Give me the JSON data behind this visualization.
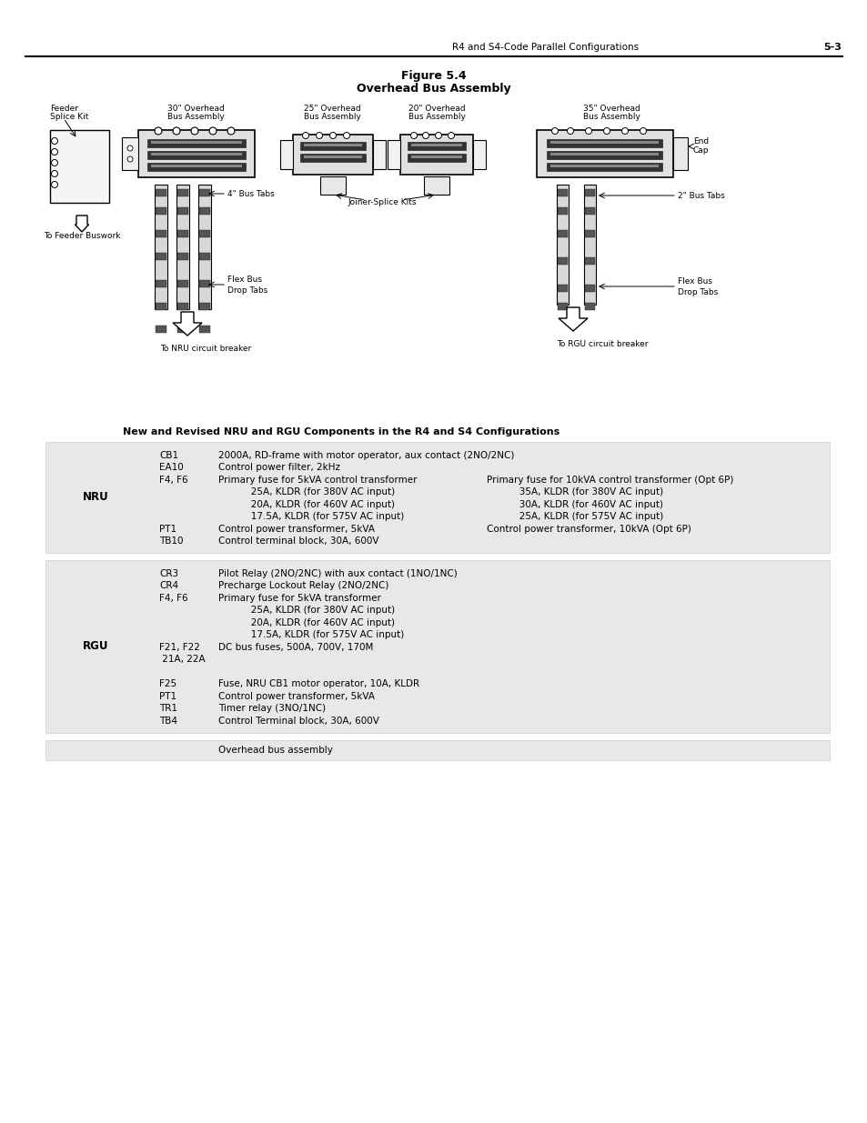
{
  "page_header_text": "R4 and S4-Code Parallel Configurations",
  "page_number": "5-3",
  "figure_title_line1": "Figure 5.4",
  "figure_title_line2": "Overhead Bus Assembly",
  "table_title": "New and Revised NRU and RGU Components in the R4 and S4 Configurations",
  "bg_color": "#ffffff",
  "nru_rows": [
    {
      "label": "CB1",
      "col1": "2000A, RD-frame with motor operator, aux contact (2NO/2NC)",
      "col2": ""
    },
    {
      "label": "EA10",
      "col1": "Control power filter, 2kHz",
      "col2": ""
    },
    {
      "label": "F4, F6",
      "col1": "Primary fuse for 5kVA control transformer",
      "col2": "Primary fuse for 10kVA control transformer (Opt 6P)"
    },
    {
      "label": "",
      "col1": "           25A, KLDR (for 380V AC input)",
      "col2": "           35A, KLDR (for 380V AC input)"
    },
    {
      "label": "",
      "col1": "           20A, KLDR (for 460V AC input)",
      "col2": "           30A, KLDR (for 460V AC input)"
    },
    {
      "label": "",
      "col1": "           17.5A, KLDR (for 575V AC input)",
      "col2": "           25A, KLDR (for 575V AC input)"
    },
    {
      "label": "PT1",
      "col1": "Control power transformer, 5kVA",
      "col2": "Control power transformer, 10kVA (Opt 6P)"
    },
    {
      "label": "TB10",
      "col1": "Control terminal block, 30A, 600V",
      "col2": ""
    }
  ],
  "rgu_rows": [
    {
      "label": "CR3",
      "col1": "Pilot Relay (2NO/2NC) with aux contact (1NO/1NC)",
      "col2": ""
    },
    {
      "label": "CR4",
      "col1": "Precharge Lockout Relay (2NO/2NC)",
      "col2": ""
    },
    {
      "label": "F4, F6",
      "col1": "Primary fuse for 5kVA transformer",
      "col2": ""
    },
    {
      "label": "",
      "col1": "           25A, KLDR (for 380V AC input)",
      "col2": ""
    },
    {
      "label": "",
      "col1": "           20A, KLDR (for 460V AC input)",
      "col2": ""
    },
    {
      "label": "",
      "col1": "           17.5A, KLDR (for 575V AC input)",
      "col2": ""
    },
    {
      "label": "F21, F22",
      "col1": "DC bus fuses, 500A, 700V, 170M",
      "col2": ""
    },
    {
      "label": " 21A, 22A",
      "col1": "",
      "col2": ""
    },
    {
      "label": "",
      "col1": "",
      "col2": ""
    },
    {
      "label": "F25",
      "col1": "Fuse, NRU CB1 motor operator, 10A, KLDR",
      "col2": ""
    },
    {
      "label": "PT1",
      "col1": "Control power transformer, 5kVA",
      "col2": ""
    },
    {
      "label": "TR1",
      "col1": "Timer relay (3NO/1NC)",
      "col2": ""
    },
    {
      "label": "TB4",
      "col1": "Control Terminal block, 30A, 600V",
      "col2": ""
    }
  ],
  "last_row": "Overhead bus assembly"
}
